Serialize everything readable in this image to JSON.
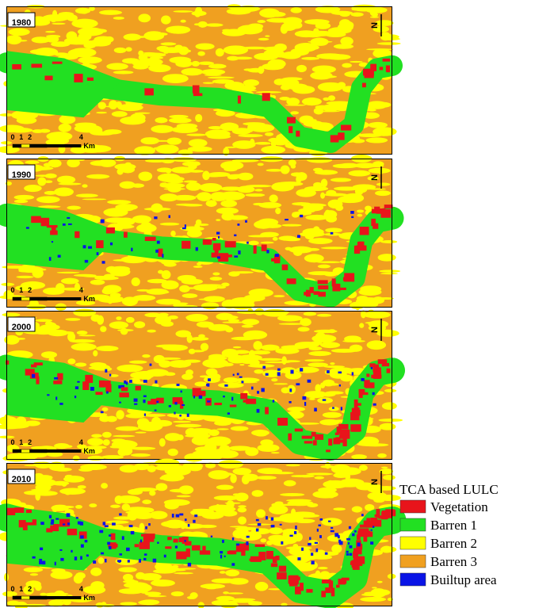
{
  "panels": [
    {
      "year": "1980"
    },
    {
      "year": "1990"
    },
    {
      "year": "2000"
    },
    {
      "year": "2010"
    }
  ],
  "scale_bar": {
    "ticks": [
      "0",
      "1",
      "2",
      "4"
    ],
    "unit": "Km"
  },
  "north_label": "N",
  "legend": {
    "title": "TCA based LULC",
    "items": [
      {
        "label": "Vegetation",
        "color": "#e8141b"
      },
      {
        "label": "Barren 1",
        "color": "#22e022"
      },
      {
        "label": "Barren 2",
        "color": "#ffff00"
      },
      {
        "label": "Barren 3",
        "color": "#f0a020"
      },
      {
        "label": "Builtup area",
        "color": "#0a14e6"
      }
    ]
  }
}
